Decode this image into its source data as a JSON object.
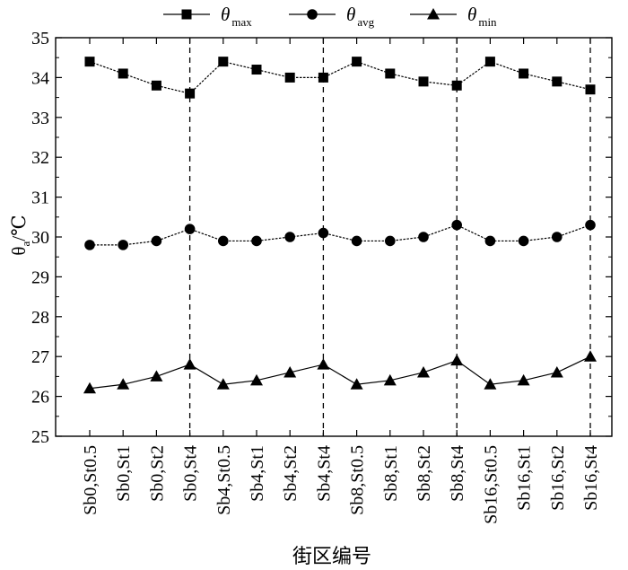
{
  "chart_data": {
    "type": "line",
    "categories": [
      "Sb0,St0.5",
      "Sb0,St1",
      "Sb0,St2",
      "Sb0,St4",
      "Sb4,St0.5",
      "Sb4,St1",
      "Sb4,St2",
      "Sb4,St4",
      "Sb8,St0.5",
      "Sb8,St1",
      "Sb8,St2",
      "Sb8,St4",
      "Sb16,St0.5",
      "Sb16,St1",
      "Sb16,St2",
      "Sb16,St4"
    ],
    "series": [
      {
        "name": "θmax",
        "symbol": "θ",
        "subscript": "max",
        "marker": "square",
        "values": [
          34.4,
          34.1,
          33.8,
          33.6,
          34.4,
          34.2,
          34.0,
          34.0,
          34.4,
          34.1,
          33.9,
          33.8,
          34.4,
          34.1,
          33.9,
          33.7
        ]
      },
      {
        "name": "θavg",
        "symbol": "θ",
        "subscript": "avg",
        "marker": "circle",
        "values": [
          29.8,
          29.8,
          29.9,
          30.2,
          29.9,
          29.9,
          30.0,
          30.1,
          29.9,
          29.9,
          30.0,
          30.3,
          29.9,
          29.9,
          30.0,
          30.3
        ]
      },
      {
        "name": "θmin",
        "symbol": "θ",
        "subscript": "min",
        "marker": "triangle",
        "values": [
          26.2,
          26.3,
          26.5,
          26.8,
          26.3,
          26.4,
          26.6,
          26.8,
          26.3,
          26.4,
          26.6,
          26.9,
          26.3,
          26.4,
          26.6,
          27.0
        ]
      }
    ],
    "ylim": [
      25,
      35
    ],
    "yticks": [
      25,
      26,
      27,
      28,
      29,
      30,
      31,
      32,
      33,
      34,
      35
    ],
    "ylabel": {
      "main": "θ",
      "sub": "a",
      "unit": "/℃"
    },
    "xlabel": "街区编号",
    "group_separators_after": [
      "Sb0,St4",
      "Sb4,St4",
      "Sb8,St4",
      "Sb16,St4"
    ],
    "grid": false,
    "legend_position": "top"
  }
}
